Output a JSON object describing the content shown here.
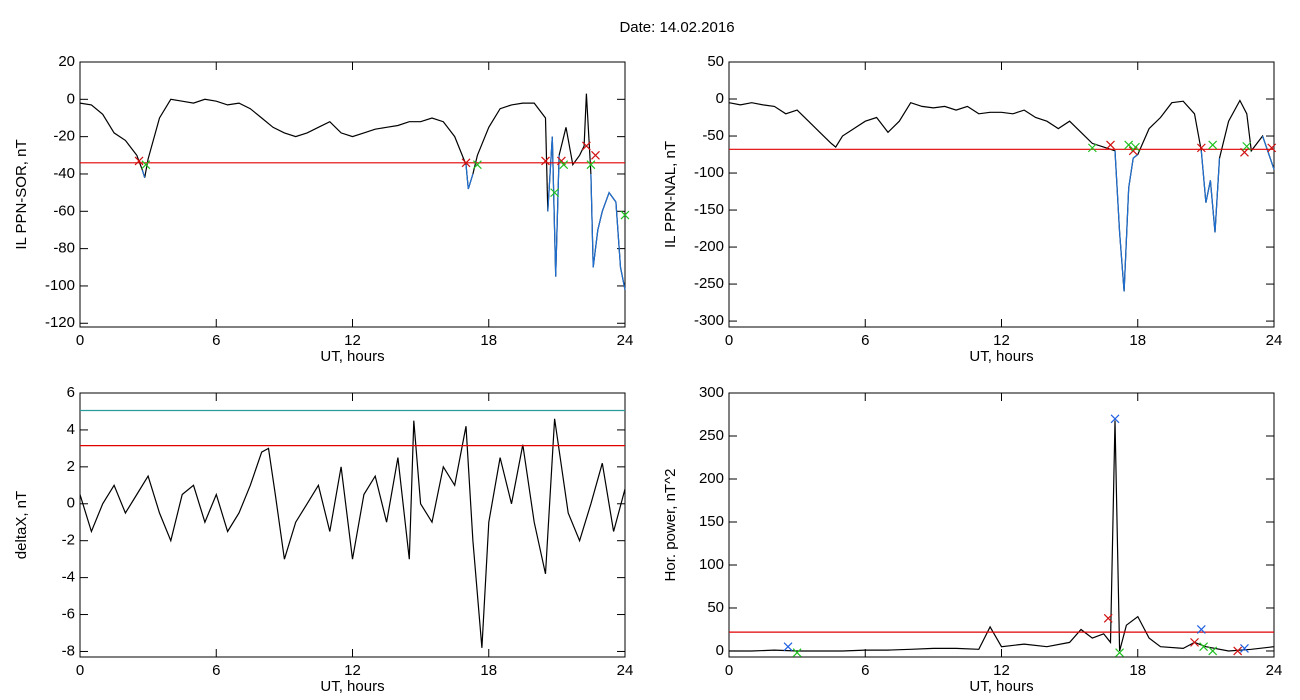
{
  "title": "Date:  14.02.2016",
  "chart_data": [
    {
      "type": "line",
      "ylabel": "IL PPN-SOR, nT",
      "xlabel": "UT, hours",
      "xlim": [
        0,
        24
      ],
      "xticks": [
        0,
        6,
        12,
        18,
        24
      ],
      "ylim": [
        -122,
        20
      ],
      "yticks": [
        20,
        0,
        -20,
        -40,
        -60,
        -80,
        -100,
        -120
      ],
      "series": [
        {
          "style": "line",
          "color": "#000000",
          "x": [
            0,
            0.5,
            1,
            1.5,
            2,
            2.5,
            2.75,
            2.85,
            3,
            3.5,
            4,
            4.5,
            5,
            5.5,
            6,
            6.5,
            7,
            7.5,
            8,
            8.5,
            9,
            9.5,
            10,
            10.5,
            11,
            11.5,
            12,
            12.5,
            13,
            13.5,
            14,
            14.5,
            15,
            15.5,
            16,
            16.5,
            17,
            17.1,
            17.3,
            17.5,
            18,
            18.5,
            19,
            19.5,
            20,
            20.5,
            20.6,
            20.8,
            20.95,
            21.1,
            21.4,
            21.7,
            22,
            22.2,
            22.3,
            22.5,
            22.6,
            22.8,
            23,
            23.3,
            23.6,
            23.8,
            24
          ],
          "values": [
            -2,
            -3,
            -8,
            -18,
            -22,
            -30,
            -38,
            -42,
            -32,
            -10,
            0,
            -1,
            -2,
            0,
            -1,
            -3,
            -2,
            -5,
            -10,
            -15,
            -18,
            -20,
            -18,
            -15,
            -12,
            -18,
            -20,
            -18,
            -16,
            -15,
            -14,
            -12,
            -12,
            -10,
            -12,
            -20,
            -35,
            -48,
            -40,
            -30,
            -15,
            -5,
            -3,
            -2,
            -2,
            -10,
            -60,
            -20,
            -95,
            -30,
            -15,
            -35,
            -30,
            -25,
            3,
            -40,
            -90,
            -70,
            -60,
            -50,
            -55,
            -90,
            -102
          ]
        },
        {
          "style": "line",
          "color": "#1f6fd1",
          "x": [
            0,
            0.5,
            1,
            1.5,
            2,
            2.5,
            2.75,
            2.85,
            3,
            3.5,
            4,
            4.5,
            5,
            5.5,
            6,
            6.5,
            7,
            7.5,
            8,
            8.5,
            9,
            9.5,
            10,
            10.5,
            11,
            11.5,
            12,
            12.5,
            13,
            13.5,
            14,
            14.5,
            15,
            15.5,
            16,
            16.5,
            17,
            17.1,
            17.3,
            17.5,
            18,
            18.5,
            19,
            19.5,
            20,
            20.5,
            20.6,
            20.8,
            20.95,
            21.1,
            21.4,
            21.7,
            22,
            22.2,
            22.3,
            22.5,
            22.6,
            22.8,
            23,
            23.3,
            23.6,
            23.8,
            24
          ],
          "values": [
            null,
            null,
            null,
            null,
            null,
            null,
            -38,
            -42,
            null,
            null,
            null,
            null,
            null,
            null,
            null,
            null,
            null,
            null,
            null,
            null,
            null,
            null,
            null,
            null,
            null,
            null,
            null,
            null,
            null,
            null,
            null,
            null,
            null,
            null,
            null,
            null,
            -35,
            -48,
            -40,
            null,
            null,
            null,
            null,
            null,
            null,
            null,
            -60,
            -20,
            -95,
            -30,
            null,
            null,
            null,
            null,
            null,
            -40,
            -90,
            -70,
            -60,
            -50,
            -55,
            -90,
            -102
          ]
        },
        {
          "style": "line",
          "color": "#e00000",
          "x": [
            0,
            24
          ],
          "values": [
            -34,
            -34
          ]
        },
        {
          "style": "x",
          "color": "#d01010",
          "x": [
            2.6,
            17,
            20.5,
            21.2,
            22.3,
            22.7
          ],
          "values": [
            -33,
            -34,
            -33,
            -33,
            -25,
            -30
          ]
        },
        {
          "style": "x",
          "color": "#20c020",
          "x": [
            2.9,
            17.5,
            20.9,
            21.3,
            22.5,
            24
          ],
          "values": [
            -35,
            -35,
            -50,
            -35,
            -35,
            -62
          ]
        }
      ]
    },
    {
      "type": "line",
      "ylabel": "IL PPN-NAL, nT",
      "xlabel": "UT, hours",
      "xlim": [
        0,
        24
      ],
      "xticks": [
        0,
        6,
        12,
        18,
        24
      ],
      "ylim": [
        -308,
        50
      ],
      "yticks": [
        50,
        0,
        -50,
        -100,
        -150,
        -200,
        -250,
        -300
      ],
      "series": [
        {
          "style": "line",
          "color": "#000000",
          "x": [
            0,
            0.5,
            1,
            1.5,
            2,
            2.5,
            3,
            3.5,
            4,
            4.5,
            4.7,
            5,
            5.5,
            6,
            6.5,
            7,
            7.5,
            8,
            8.5,
            9,
            9.5,
            10,
            10.5,
            11,
            11.5,
            12,
            12.5,
            13,
            13.5,
            14,
            14.5,
            15,
            15.5,
            16,
            16.5,
            17,
            17.2,
            17.4,
            17.6,
            17.8,
            18,
            18.5,
            19,
            19.5,
            20,
            20.5,
            20.8,
            21,
            21.2,
            21.4,
            21.6,
            22,
            22.5,
            22.8,
            23,
            23.5,
            24
          ],
          "values": [
            -5,
            -8,
            -5,
            -8,
            -10,
            -20,
            -15,
            -30,
            -45,
            -60,
            -65,
            -50,
            -40,
            -30,
            -25,
            -45,
            -30,
            -5,
            -10,
            -12,
            -10,
            -15,
            -10,
            -20,
            -18,
            -18,
            -20,
            -15,
            -25,
            -30,
            -40,
            -30,
            -45,
            -60,
            -65,
            -70,
            -180,
            -260,
            -120,
            -80,
            -75,
            -40,
            -25,
            -5,
            -3,
            -20,
            -70,
            -140,
            -110,
            -180,
            -80,
            -30,
            -2,
            -20,
            -70,
            -50,
            -95
          ]
        },
        {
          "style": "line",
          "color": "#1f6fd1",
          "x": [
            0,
            0.5,
            1,
            1.5,
            2,
            2.5,
            3,
            3.5,
            4,
            4.5,
            4.7,
            5,
            5.5,
            6,
            6.5,
            7,
            7.5,
            8,
            8.5,
            9,
            9.5,
            10,
            10.5,
            11,
            11.5,
            12,
            12.5,
            13,
            13.5,
            14,
            14.5,
            15,
            15.5,
            16,
            16.5,
            17,
            17.2,
            17.4,
            17.6,
            17.8,
            18,
            18.5,
            19,
            19.5,
            20,
            20.5,
            20.8,
            21,
            21.2,
            21.4,
            21.6,
            22,
            22.5,
            22.8,
            23,
            23.5,
            24
          ],
          "values": [
            null,
            null,
            null,
            null,
            null,
            null,
            null,
            null,
            null,
            null,
            null,
            null,
            null,
            null,
            null,
            null,
            null,
            null,
            null,
            null,
            null,
            null,
            null,
            null,
            null,
            null,
            null,
            null,
            null,
            null,
            null,
            null,
            null,
            null,
            null,
            -70,
            -180,
            -260,
            -120,
            -80,
            -75,
            null,
            null,
            null,
            null,
            null,
            -70,
            -140,
            -110,
            -180,
            -80,
            null,
            null,
            null,
            null,
            -50,
            -95
          ]
        },
        {
          "style": "line",
          "color": "#e00000",
          "x": [
            0,
            24
          ],
          "values": [
            -68,
            -68
          ]
        },
        {
          "style": "x",
          "color": "#d01010",
          "x": [
            16.8,
            17.8,
            20.8,
            22.7,
            23.9
          ],
          "values": [
            -62,
            -70,
            -66,
            -72,
            -66
          ]
        },
        {
          "style": "x",
          "color": "#20c020",
          "x": [
            16,
            17.6,
            17.9,
            21.3,
            22.8
          ],
          "values": [
            -66,
            -62,
            -65,
            -62,
            -64
          ]
        }
      ]
    },
    {
      "type": "line",
      "ylabel": "deltaX, nT",
      "xlabel": "UT, hours",
      "xlim": [
        0,
        24
      ],
      "xticks": [
        0,
        6,
        12,
        18,
        24
      ],
      "ylim": [
        -8.3,
        6
      ],
      "yticks": [
        6,
        4,
        2,
        0,
        -2,
        -4,
        -6,
        -8
      ],
      "series": [
        {
          "style": "line",
          "color": "#000000",
          "x": [
            0,
            0.5,
            1,
            1.5,
            2,
            2.5,
            3,
            3.5,
            4,
            4.5,
            5,
            5.5,
            6,
            6.5,
            7,
            7.5,
            8,
            8.3,
            8.6,
            9,
            9.5,
            10,
            10.5,
            11,
            11.5,
            12,
            12.5,
            13,
            13.5,
            14,
            14.5,
            14.7,
            15,
            15.5,
            16,
            16.5,
            17,
            17.3,
            17.7,
            18,
            18.5,
            19,
            19.5,
            20,
            20.5,
            20.9,
            21.5,
            22,
            22.5,
            23,
            23.5,
            24
          ],
          "values": [
            0.5,
            -1.5,
            0,
            1,
            -0.5,
            0.5,
            1.5,
            -0.5,
            -2,
            0.5,
            1,
            -1,
            0.5,
            -1.5,
            -0.5,
            1,
            2.8,
            3,
            0.5,
            -3,
            -1,
            0,
            1,
            -1.5,
            2,
            -3,
            0.5,
            1.5,
            -1,
            2.5,
            -3,
            4.5,
            0,
            -1,
            2,
            1,
            4.2,
            -2,
            -7.8,
            -1,
            2.5,
            0,
            3.2,
            -1,
            -3.8,
            4.6,
            -0.5,
            -2,
            0,
            2.2,
            -1.5,
            0.8
          ]
        },
        {
          "style": "line",
          "color": "#2a9a9a",
          "x": [
            0,
            24
          ],
          "values": [
            5.05,
            5.05
          ]
        },
        {
          "style": "line",
          "color": "#e00000",
          "x": [
            0,
            24
          ],
          "values": [
            3.15,
            3.15
          ]
        }
      ]
    },
    {
      "type": "line",
      "ylabel": "Hor. power, nT^2",
      "xlabel": "UT, hours",
      "xlim": [
        0,
        24
      ],
      "xticks": [
        0,
        6,
        12,
        18,
        24
      ],
      "ylim": [
        -7,
        300
      ],
      "yticks": [
        300,
        250,
        200,
        150,
        100,
        50,
        0
      ],
      "series": [
        {
          "style": "line",
          "color": "#000000",
          "x": [
            0,
            1,
            2,
            3,
            4,
            5,
            6,
            7,
            8,
            9,
            10,
            11,
            11.5,
            12,
            13,
            14,
            15,
            15.5,
            16,
            16.5,
            16.8,
            17,
            17.2,
            17.5,
            18,
            18.5,
            19,
            20,
            20.5,
            21,
            22,
            23,
            24
          ],
          "values": [
            0,
            0,
            1,
            0,
            0,
            0,
            1,
            1,
            2,
            3,
            3,
            2,
            28,
            5,
            8,
            5,
            10,
            25,
            15,
            20,
            10,
            268,
            0,
            30,
            40,
            15,
            5,
            3,
            10,
            5,
            0,
            2,
            5
          ]
        },
        {
          "style": "line",
          "color": "#e00000",
          "x": [
            0,
            24
          ],
          "values": [
            22,
            22
          ]
        },
        {
          "style": "x",
          "color": "#2060e0",
          "x": [
            2.6,
            17,
            20.8,
            22.7
          ],
          "values": [
            5,
            270,
            25,
            3
          ]
        },
        {
          "style": "x",
          "color": "#d01010",
          "x": [
            16.7,
            20.5,
            22.4
          ],
          "values": [
            38,
            10,
            0
          ]
        },
        {
          "style": "x",
          "color": "#20c020",
          "x": [
            3,
            17.2,
            20.9,
            21.3
          ],
          "values": [
            -2,
            -2,
            5,
            0
          ]
        }
      ]
    }
  ]
}
